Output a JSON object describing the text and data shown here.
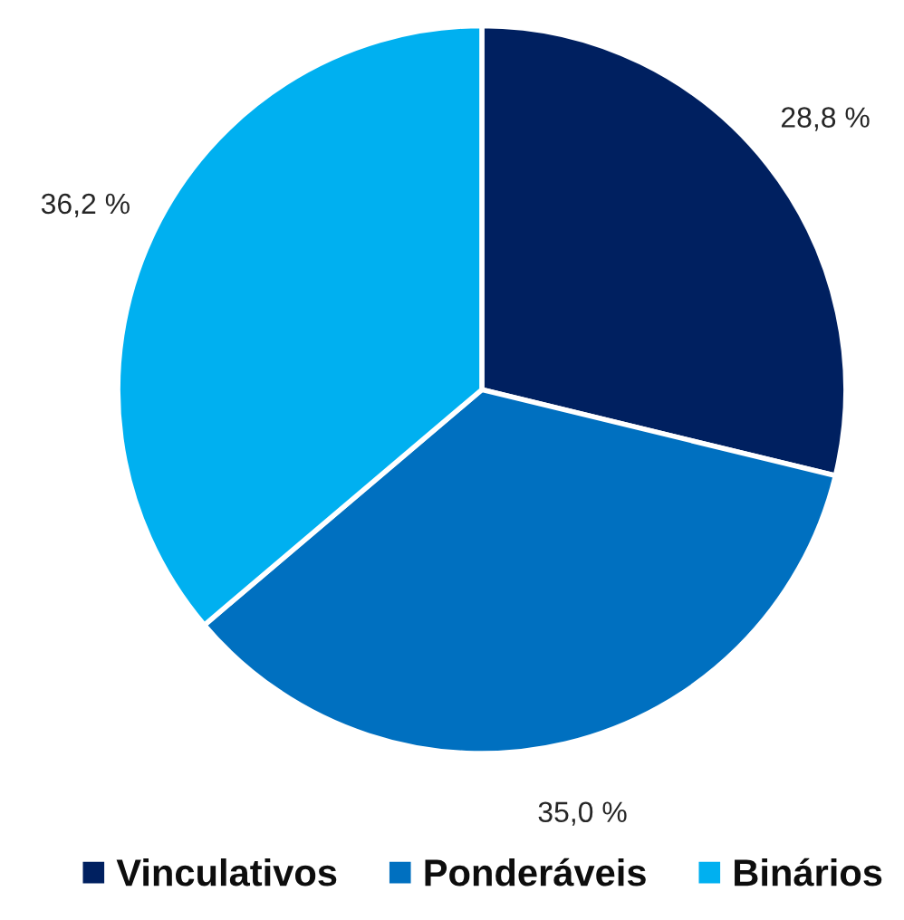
{
  "chart_data": {
    "type": "pie",
    "categories": [
      "Vinculativos",
      "Ponderáveis",
      "Binários"
    ],
    "values": [
      28.8,
      35.0,
      36.2
    ],
    "colors": [
      "#002060",
      "#0070c0",
      "#00b0f0"
    ],
    "value_labels": [
      "28,8 %",
      "35,0 %",
      "36,2 %"
    ],
    "legend": "bottom"
  }
}
